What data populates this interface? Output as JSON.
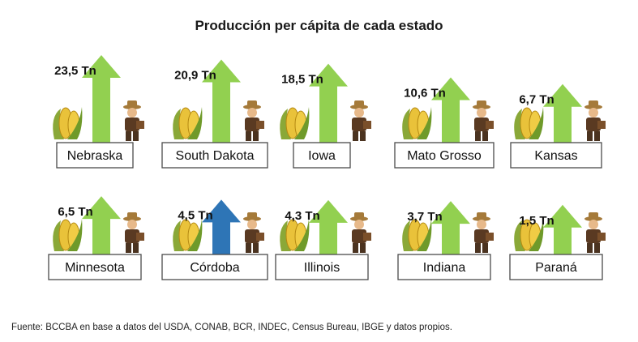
{
  "chart_data": {
    "type": "bar",
    "title": "Producción per cápita de cada estado",
    "unit": "Tn",
    "categories": [
      "Nebraska",
      "South Dakota",
      "Iowa",
      "Mato Grosso",
      "Kansas",
      "Minnesota",
      "Córdoba",
      "Illinois",
      "Indiana",
      "Paraná"
    ],
    "value_labels": [
      "23,5 Tn",
      "20,9 Tn",
      "18,5 Tn",
      "10,6 Tn",
      "6,7 Tn",
      "6,5 Tn",
      "4,5 Tn",
      "4,3 Tn",
      "3,7 Tn",
      "1,5 Tn"
    ],
    "values": [
      23.5,
      20.9,
      18.5,
      10.6,
      6.7,
      6.5,
      4.5,
      4.3,
      3.7,
      1.5
    ],
    "highlight": "Córdoba",
    "colors": {
      "default_arrow": "#92d050",
      "highlight_arrow": "#2e75b6",
      "label_border": "#4a4a4a"
    },
    "icons": [
      "corn-icon",
      "farmer-icon"
    ],
    "source": "Fuente: BCCBA en base a datos del USDA, CONAB, BCR, INDEC, Census Bureau, IBGE y datos propios."
  }
}
